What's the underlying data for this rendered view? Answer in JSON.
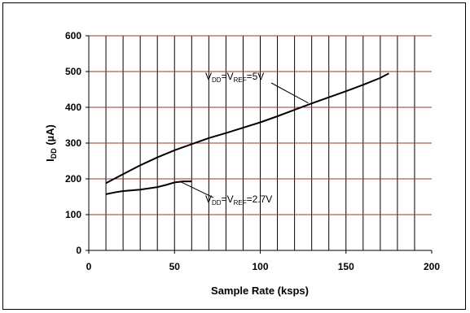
{
  "chart_data": {
    "type": "line",
    "xlabel": "Sample Rate (ksps)",
    "ylabel_main": "I",
    "ylabel_sub": "DD",
    "ylabel_unit": " (µA)",
    "xlim": [
      0,
      200
    ],
    "ylim": [
      0,
      600
    ],
    "x_ticks": [
      0,
      50,
      100,
      150,
      200
    ],
    "y_ticks": [
      0,
      100,
      200,
      300,
      400,
      500,
      600
    ],
    "grid": true,
    "series": [
      {
        "label_parts": [
          "V",
          "DD",
          "=V",
          "REF",
          "=5V"
        ],
        "x": [
          10,
          20,
          30,
          40,
          50,
          60,
          70,
          80,
          90,
          100,
          110,
          120,
          130,
          140,
          150,
          160,
          170,
          175
        ],
        "values": [
          188,
          213,
          238,
          260,
          280,
          297,
          314,
          328,
          343,
          358,
          375,
          393,
          411,
          428,
          445,
          463,
          482,
          495
        ],
        "annotation_point": [
          128,
          412
        ]
      },
      {
        "label_parts": [
          "V",
          "DD",
          "=V",
          "REF",
          "=2.7V"
        ],
        "x": [
          10,
          15,
          20,
          30,
          40,
          45,
          50,
          55,
          60
        ],
        "values": [
          157,
          162,
          166,
          170,
          177,
          183,
          190,
          193,
          193
        ],
        "annotation_point": [
          53,
          193
        ]
      }
    ]
  }
}
